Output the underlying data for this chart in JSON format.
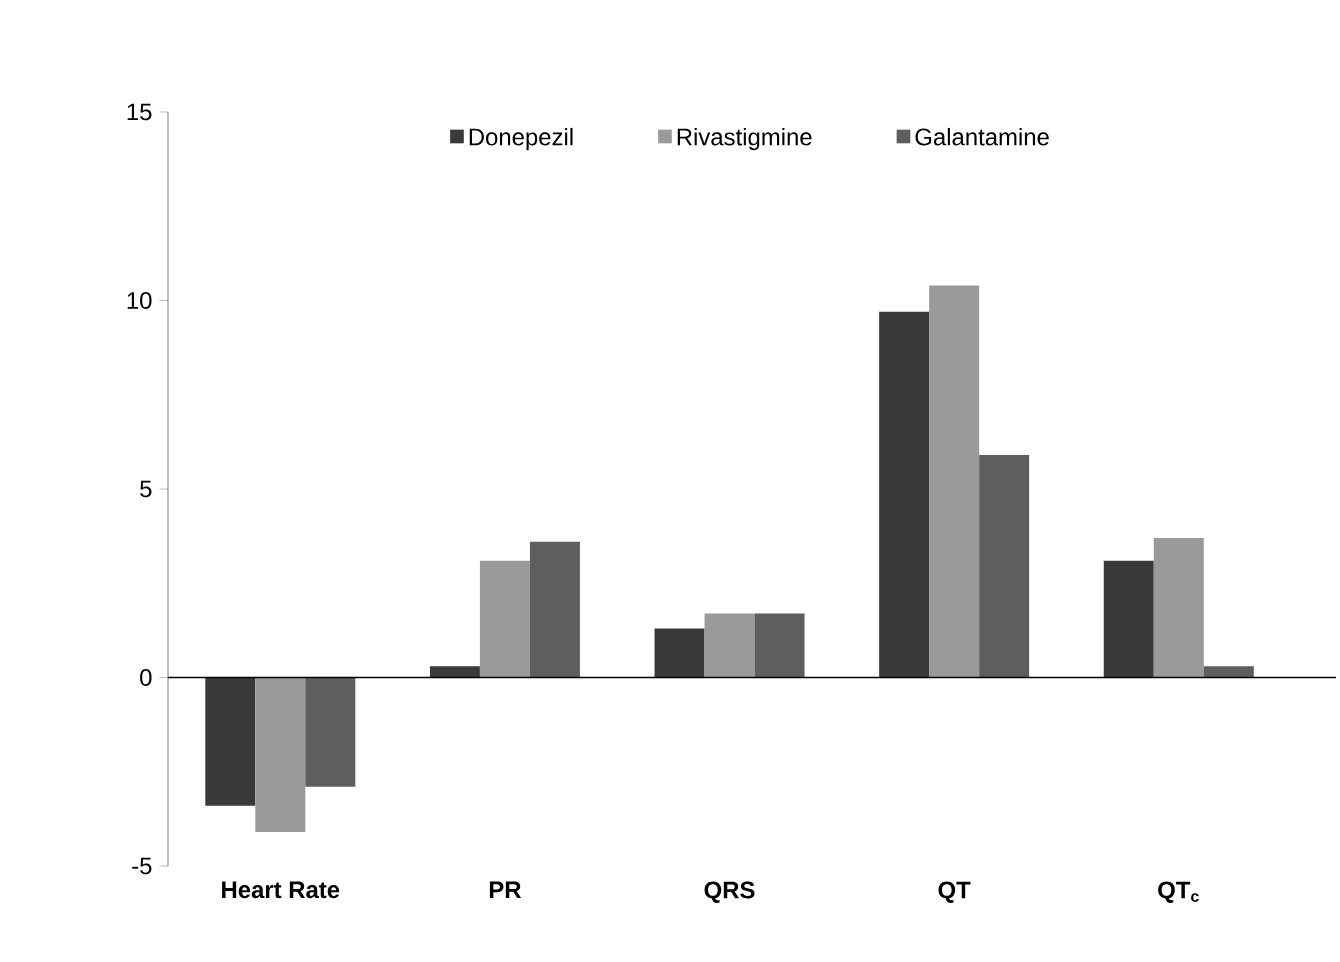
{
  "chart_data": {
    "type": "bar",
    "categories": [
      "Heart Rate",
      "PR",
      "QRS",
      "QT",
      "QT$_{c}$"
    ],
    "series": [
      {
        "name": "Donepezil",
        "color": "#3a3a3a",
        "values": [
          -3.4,
          0.3,
          1.3,
          9.7,
          3.1
        ]
      },
      {
        "name": "Rivastigmine",
        "color": "#9a9a9a",
        "values": [
          -4.1,
          3.1,
          1.7,
          10.4,
          3.7
        ]
      },
      {
        "name": "Galantamine",
        "color": "#5e5e5e",
        "values": [
          -2.9,
          3.6,
          1.7,
          5.9,
          0.3
        ]
      }
    ],
    "ylim": [
      -5,
      15
    ],
    "yticks": [
      -5,
      0,
      5,
      10,
      15
    ],
    "legend": "top"
  }
}
